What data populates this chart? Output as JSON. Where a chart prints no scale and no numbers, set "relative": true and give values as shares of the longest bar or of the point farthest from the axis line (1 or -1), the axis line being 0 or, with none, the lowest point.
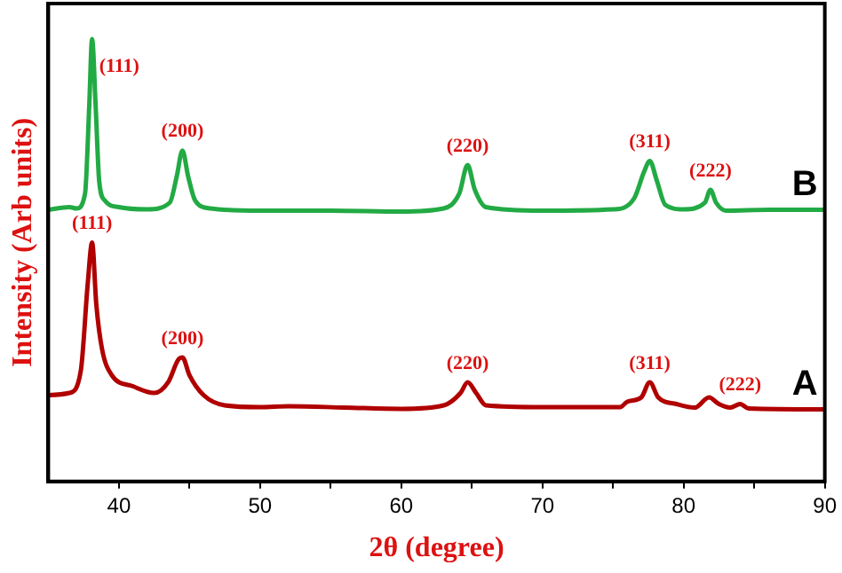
{
  "chart_data": {
    "type": "line",
    "xlabel": "2θ (degree)",
    "ylabel": "Intensity (Arb units)",
    "relative": true,
    "xlim": [
      35,
      90
    ],
    "xticks": [
      40,
      {
        "value": 45,
        "label": null
      },
      50,
      {
        "value": 55,
        "label": null
      },
      60,
      {
        "value": 65,
        "label": null
      },
      70,
      {
        "value": 75,
        "label": null
      },
      80,
      {
        "value": 85,
        "label": null
      },
      90
    ],
    "tick_labels": "x",
    "grid": false,
    "legend": false,
    "marker": "none",
    "line_style": "solid",
    "series": [
      {
        "name": "B",
        "color": "#22aa44",
        "x": [
          35,
          36.5,
          37,
          37.6,
          37.9,
          38.1,
          38.35,
          38.6,
          39,
          40,
          42,
          43.6,
          44.1,
          44.5,
          44.9,
          45.4,
          46.5,
          50,
          55,
          60,
          63,
          64.1,
          64.7,
          65.2,
          66,
          70,
          75,
          76.5,
          77.2,
          77.6,
          78.1,
          78.7,
          80,
          81.5,
          81.9,
          82.3,
          83,
          86,
          90
        ],
        "values": [
          0.614,
          0.62,
          0.617,
          0.65,
          0.85,
          1.0,
          0.85,
          0.68,
          0.635,
          0.62,
          0.615,
          0.63,
          0.69,
          0.748,
          0.69,
          0.635,
          0.617,
          0.612,
          0.612,
          0.61,
          0.617,
          0.65,
          0.715,
          0.66,
          0.62,
          0.612,
          0.615,
          0.64,
          0.7,
          0.724,
          0.68,
          0.625,
          0.615,
          0.63,
          0.659,
          0.63,
          0.612,
          0.614,
          0.614
        ]
      },
      {
        "name": "A",
        "color": "#b00000",
        "x": [
          35,
          36.5,
          37.3,
          37.8,
          38.1,
          38.4,
          38.8,
          39.5,
          41,
          42.5,
          43.5,
          44.2,
          44.5,
          45,
          46,
          47.5,
          50,
          52,
          56,
          60,
          63,
          64.2,
          64.7,
          65.3,
          66,
          70,
          75.5,
          76,
          77,
          77.6,
          78.2,
          79.5,
          80.8,
          81.8,
          82.5,
          83.3,
          84,
          84.6,
          90
        ],
        "values": [
          0.195,
          0.2,
          0.25,
          0.45,
          0.54,
          0.4,
          0.3,
          0.24,
          0.215,
          0.2,
          0.225,
          0.275,
          0.28,
          0.24,
          0.195,
          0.172,
          0.168,
          0.17,
          0.167,
          0.164,
          0.172,
          0.2,
          0.224,
          0.2,
          0.172,
          0.168,
          0.168,
          0.18,
          0.19,
          0.224,
          0.19,
          0.175,
          0.167,
          0.19,
          0.175,
          0.167,
          0.175,
          0.165,
          0.163
        ]
      }
    ],
    "annotations": [
      {
        "text": "(111)",
        "x": 38.1,
        "y": 1.0
      },
      {
        "text": "(200)",
        "x": 44.5,
        "y": 0.748
      },
      {
        "text": "(220)",
        "x": 64.7,
        "y": 0.715
      },
      {
        "text": "(311)",
        "x": 77.6,
        "y": 0.724
      },
      {
        "text": "(222)",
        "x": 81.9,
        "y": 0.659
      },
      {
        "text": "(111)",
        "x": 38.1,
        "y": 0.54
      },
      {
        "text": "(200)",
        "x": 44.5,
        "y": 0.28
      },
      {
        "text": "(220)",
        "x": 64.7,
        "y": 0.224
      },
      {
        "text": "(311)",
        "x": 77.6,
        "y": 0.224
      },
      {
        "text": "(222)",
        "x": 84,
        "y": 0.175
      }
    ]
  }
}
